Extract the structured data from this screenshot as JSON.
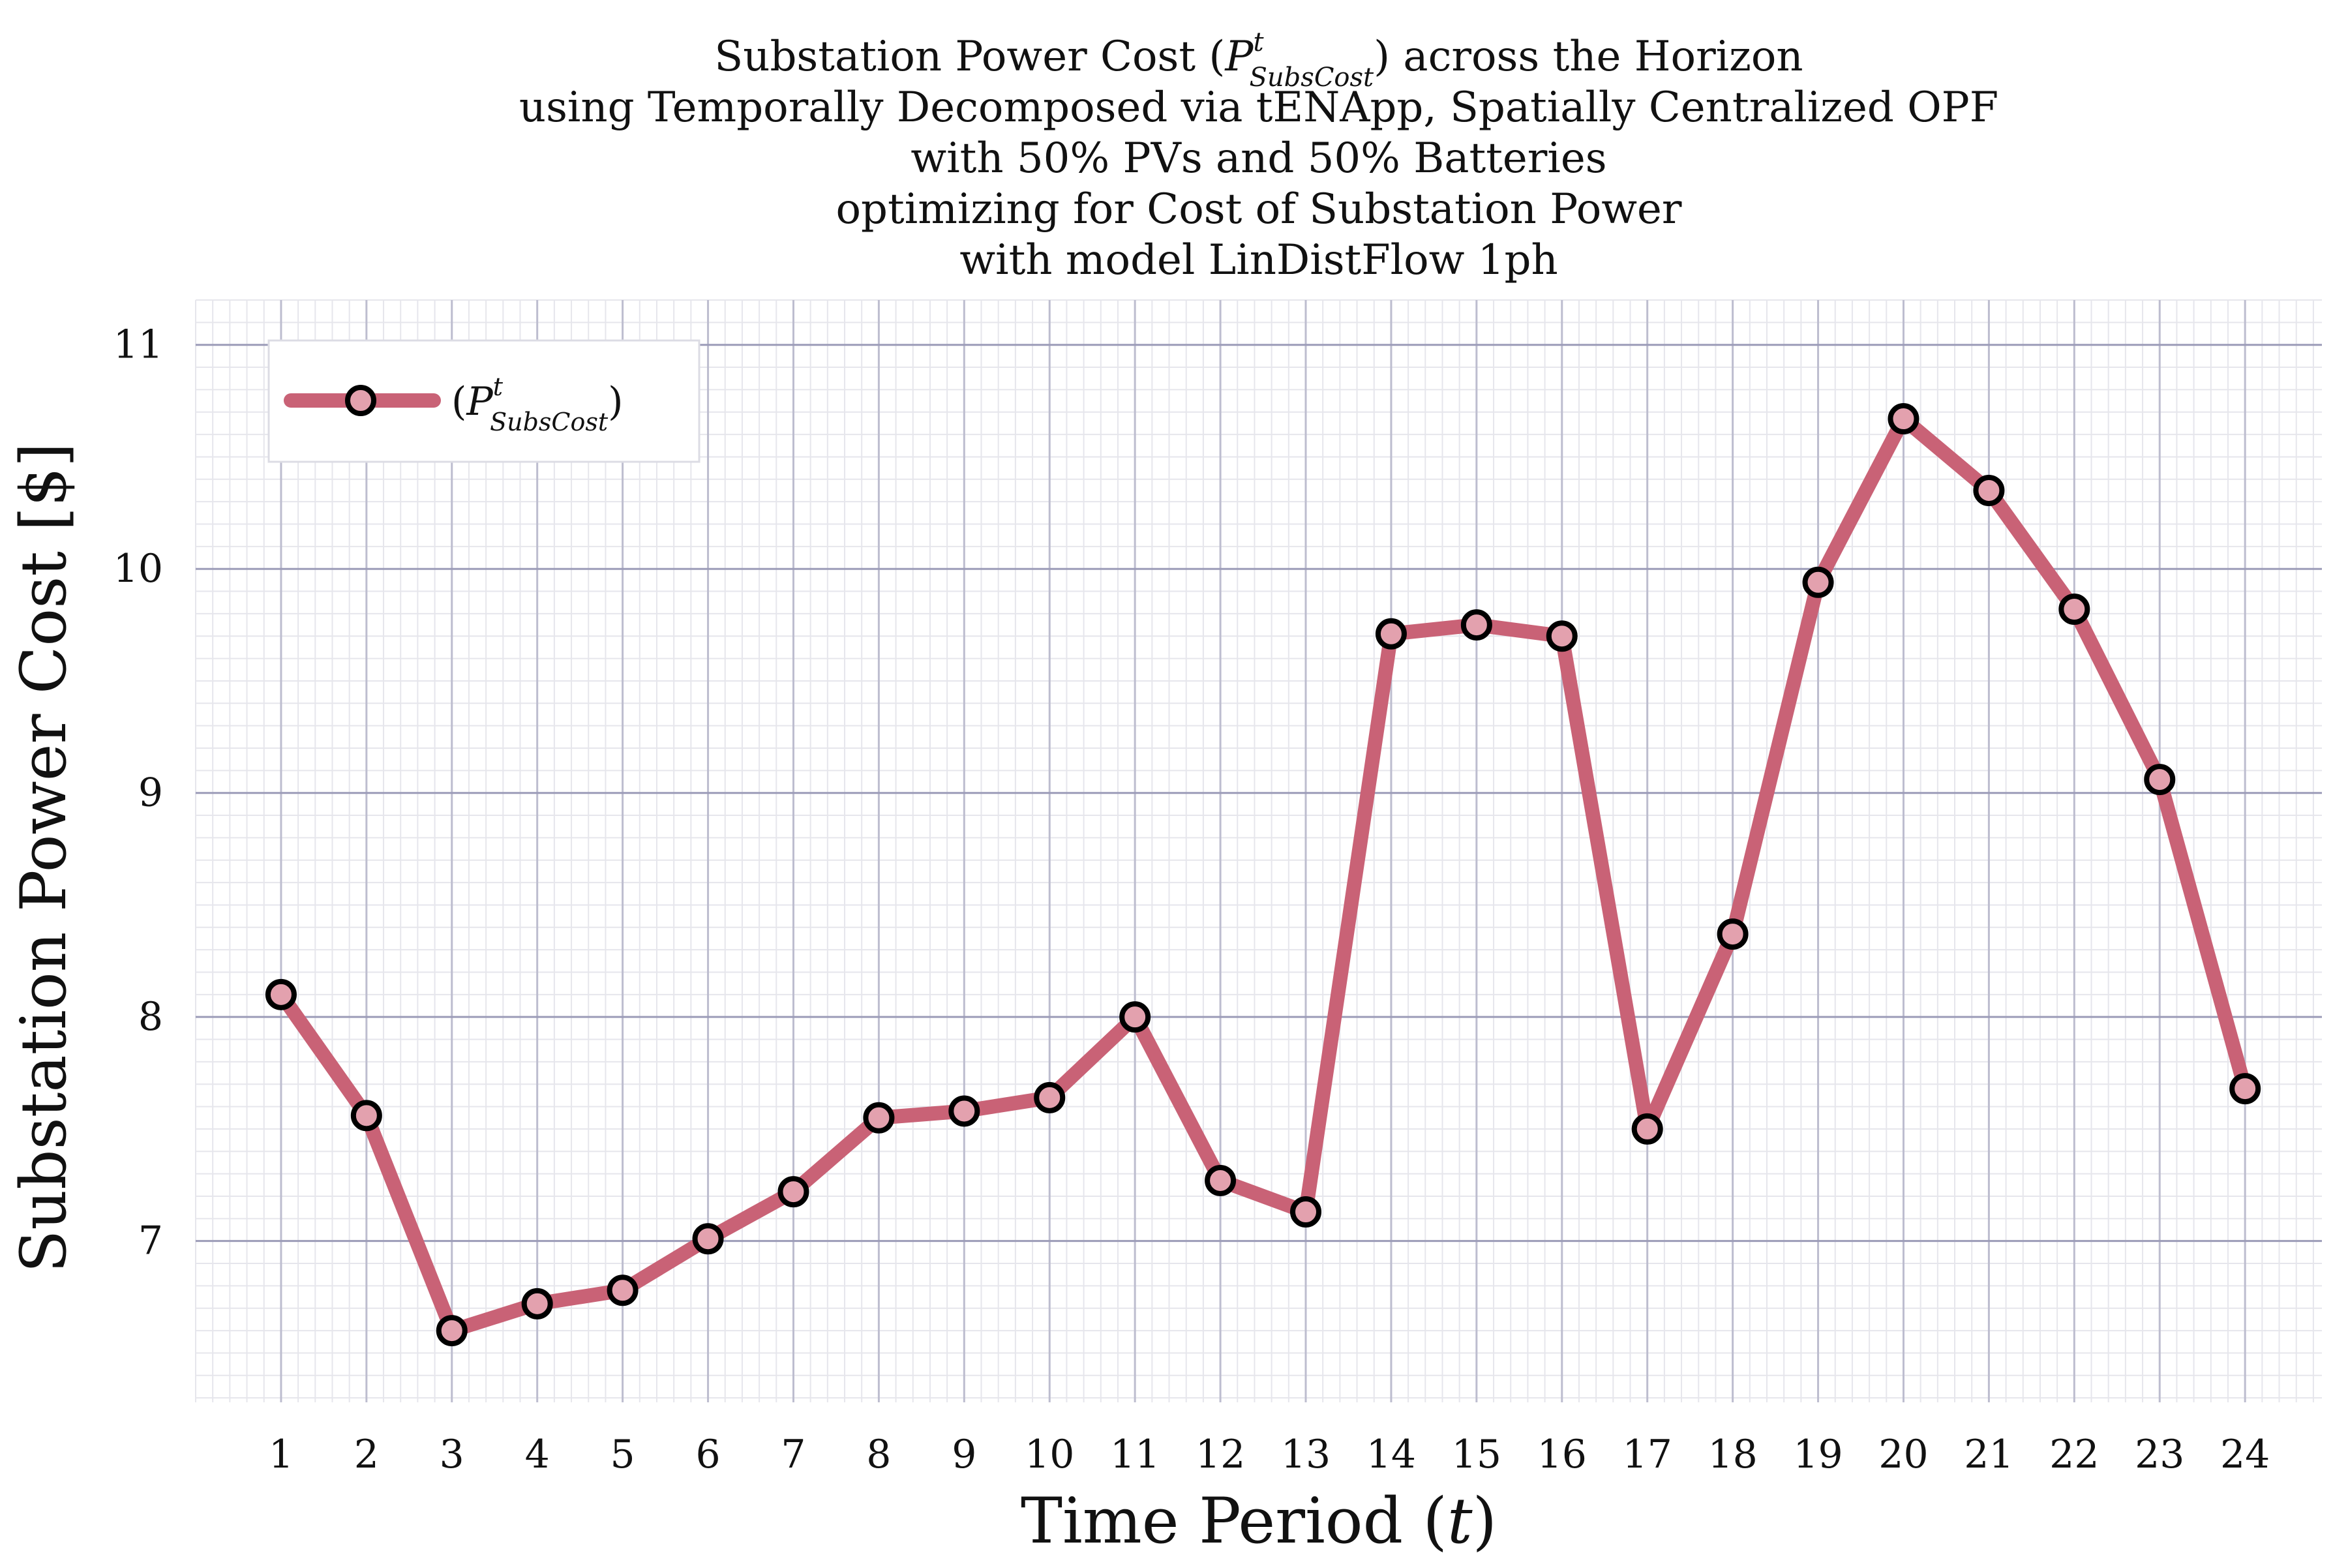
{
  "chart_data": {
    "type": "line",
    "title_lines": [
      "Substation Power Cost (P^t_SubsCost) across the Horizon",
      "using Temporally Decomposed via tENApp, Spatially Centralized OPF",
      "with 50% PVs and 50% Batteries",
      "optimizing for Cost of Substation Power",
      "with model LinDistFlow 1ph"
    ],
    "title_math": {
      "pre": "Substation Power Cost (",
      "base": "P",
      "sup": "t",
      "sub": "SubsCost",
      "post": ") across the Horizon"
    },
    "xlabel": {
      "pre": "Time Period (",
      "var": "t",
      "post": ")"
    },
    "ylabel": "Substation Power Cost [$]",
    "x": [
      1,
      2,
      3,
      4,
      5,
      6,
      7,
      8,
      9,
      10,
      11,
      12,
      13,
      14,
      15,
      16,
      17,
      18,
      19,
      20,
      21,
      22,
      23,
      24
    ],
    "x_tick_labels": [
      "1",
      "2",
      "3",
      "4",
      "5",
      "6",
      "7",
      "8",
      "9",
      "10",
      "11",
      "12",
      "13",
      "14",
      "15",
      "16",
      "17",
      "18",
      "19",
      "20",
      "21",
      "22",
      "23",
      "24"
    ],
    "y_ticks": [
      7,
      8,
      9,
      10,
      11
    ],
    "y_tick_labels": [
      "7",
      "8",
      "9",
      "10",
      "11"
    ],
    "xlim": [
      0.0,
      24.9
    ],
    "ylim": [
      6.28,
      11.2
    ],
    "grid": true,
    "legend_position": "top-left",
    "series": [
      {
        "name": "(P^t_SubsCost)",
        "legend_math": {
          "pre": "(",
          "base": "P",
          "sup": "t",
          "sub": "SubsCost",
          "post": ")"
        },
        "values": [
          8.1,
          7.56,
          6.6,
          6.72,
          6.78,
          7.01,
          7.22,
          7.55,
          7.58,
          7.64,
          8.0,
          7.27,
          7.13,
          9.71,
          9.75,
          9.7,
          7.5,
          8.37,
          9.94,
          10.67,
          10.35,
          9.82,
          9.06,
          7.68
        ],
        "line_color": "#c96276",
        "marker_fill": "#e3a1ae",
        "marker_edge": "#000000"
      }
    ]
  }
}
